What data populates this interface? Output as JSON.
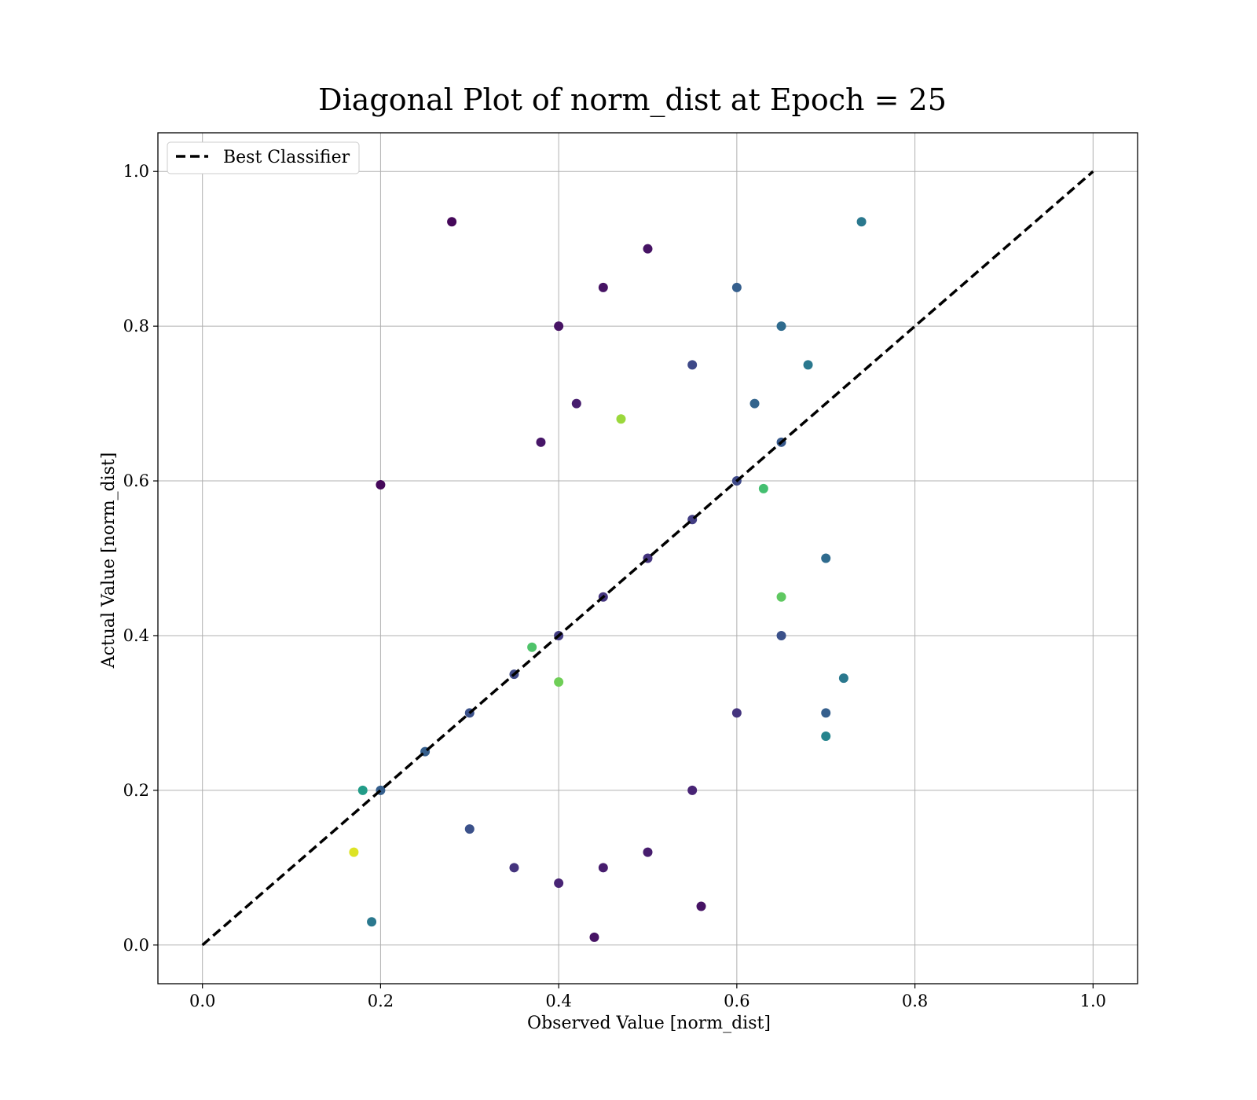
{
  "chart_data": {
    "type": "scatter",
    "title": "Diagonal Plot of norm_dist at Epoch = 25",
    "xlabel": "Observed Value [norm_dist]",
    "ylabel": "Actual Value [norm_dist]",
    "xlim": [
      -0.05,
      1.05
    ],
    "ylim": [
      -0.05,
      1.05
    ],
    "xticks": [
      0.0,
      0.2,
      0.4,
      0.6,
      0.8,
      1.0
    ],
    "yticks": [
      0.0,
      0.2,
      0.4,
      0.6,
      0.8,
      1.0
    ],
    "xtick_labels": [
      "0.0",
      "0.2",
      "0.4",
      "0.6",
      "0.8",
      "1.0"
    ],
    "ytick_labels": [
      "0.0",
      "0.2",
      "0.4",
      "0.6",
      "0.8",
      "1.0"
    ],
    "grid": true,
    "colormap": "viridis",
    "legend": {
      "position": "upper-left",
      "entries": [
        {
          "label": "Best Classifier",
          "style": "dashed",
          "color": "#000000"
        }
      ]
    },
    "series": [
      {
        "name": "Best Classifier",
        "kind": "line",
        "style": "dashed",
        "color": "#000000",
        "x": [
          0.0,
          1.0
        ],
        "y": [
          0.0,
          1.0
        ]
      },
      {
        "kind": "scatter",
        "points": [
          [
            0.2,
            0.2,
            0.3
          ],
          [
            0.25,
            0.25,
            0.3
          ],
          [
            0.3,
            0.3,
            0.25
          ],
          [
            0.35,
            0.35,
            0.22
          ],
          [
            0.4,
            0.4,
            0.18
          ],
          [
            0.45,
            0.45,
            0.15
          ],
          [
            0.5,
            0.5,
            0.15
          ],
          [
            0.55,
            0.55,
            0.18
          ],
          [
            0.6,
            0.6,
            0.22
          ],
          [
            0.65,
            0.65,
            0.28
          ],
          [
            0.4,
            0.8,
            0.05
          ],
          [
            0.45,
            0.85,
            0.05
          ],
          [
            0.5,
            0.9,
            0.05
          ],
          [
            0.42,
            0.7,
            0.08
          ],
          [
            0.38,
            0.65,
            0.06
          ],
          [
            0.6,
            0.85,
            0.3
          ],
          [
            0.65,
            0.8,
            0.35
          ],
          [
            0.68,
            0.75,
            0.4
          ],
          [
            0.55,
            0.75,
            0.22
          ],
          [
            0.62,
            0.7,
            0.32
          ],
          [
            0.3,
            0.15,
            0.25
          ],
          [
            0.35,
            0.1,
            0.15
          ],
          [
            0.4,
            0.08,
            0.1
          ],
          [
            0.45,
            0.1,
            0.08
          ],
          [
            0.5,
            0.12,
            0.08
          ],
          [
            0.55,
            0.2,
            0.1
          ],
          [
            0.6,
            0.3,
            0.15
          ],
          [
            0.65,
            0.4,
            0.25
          ],
          [
            0.7,
            0.5,
            0.35
          ],
          [
            0.7,
            0.3,
            0.3
          ],
          [
            0.18,
            0.2,
            0.55
          ],
          [
            0.17,
            0.12,
            0.95
          ],
          [
            0.47,
            0.68,
            0.85
          ],
          [
            0.63,
            0.59,
            0.7
          ],
          [
            0.37,
            0.385,
            0.72
          ],
          [
            0.4,
            0.34,
            0.78
          ],
          [
            0.65,
            0.45,
            0.75
          ],
          [
            0.2,
            0.595,
            0.02
          ],
          [
            0.28,
            0.935,
            0.02
          ],
          [
            0.74,
            0.935,
            0.4
          ],
          [
            0.44,
            0.01,
            0.05
          ],
          [
            0.56,
            0.05,
            0.05
          ],
          [
            0.19,
            0.03,
            0.4
          ],
          [
            0.7,
            0.27,
            0.45
          ],
          [
            0.72,
            0.345,
            0.4
          ]
        ]
      }
    ]
  }
}
